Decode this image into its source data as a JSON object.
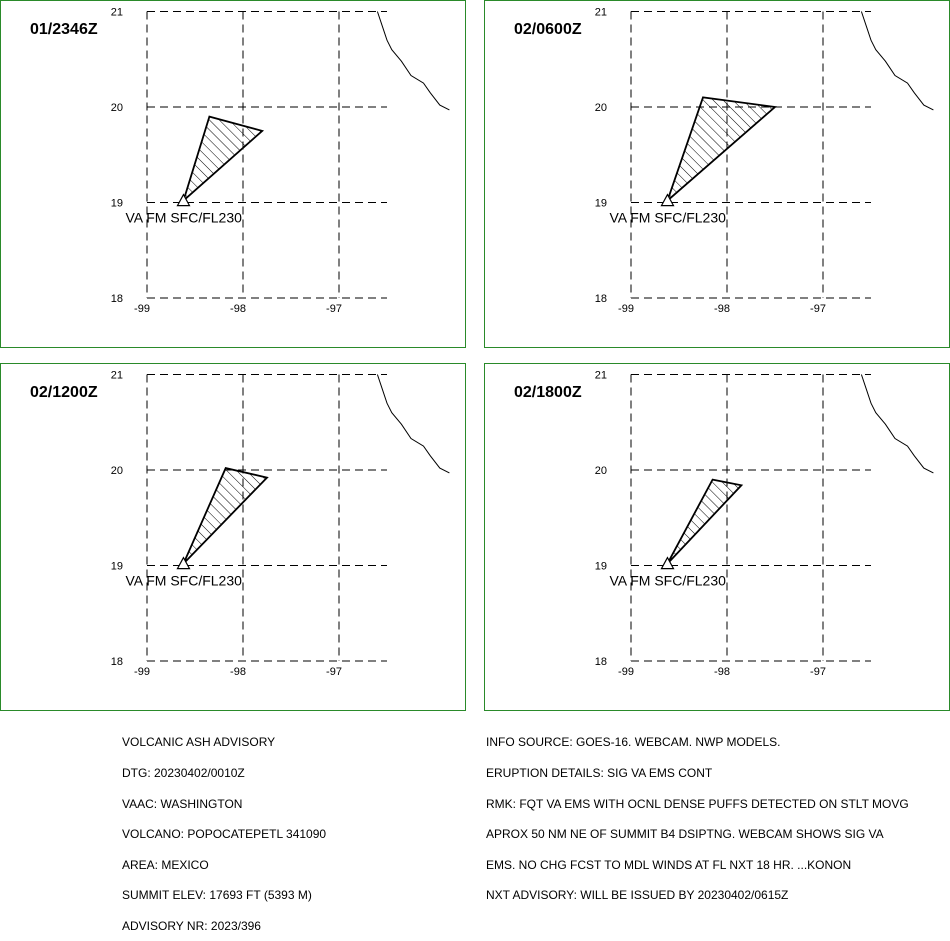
{
  "colors": {
    "frame": "#2a8a2a",
    "ink": "#000000"
  },
  "axes": {
    "x_ticks": [
      "-99",
      "-98",
      "-97"
    ],
    "y_ticks": [
      "21",
      "20",
      "19",
      "18"
    ]
  },
  "panels": [
    {
      "time": "01/2346Z",
      "label": "VA FM SFC/FL230",
      "polygon": [
        [
          -98.62,
          19.02
        ],
        [
          -98.35,
          19.9
        ],
        [
          -97.8,
          19.75
        ]
      ]
    },
    {
      "time": "02/0600Z",
      "label": "VA FM SFC/FL230",
      "polygon": [
        [
          -98.62,
          19.02
        ],
        [
          -98.25,
          20.1
        ],
        [
          -97.5,
          20.0
        ]
      ]
    },
    {
      "time": "02/1200Z",
      "label": "VA FM SFC/FL230",
      "polygon": [
        [
          -98.62,
          19.02
        ],
        [
          -98.18,
          20.02
        ],
        [
          -97.75,
          19.92
        ]
      ]
    },
    {
      "time": "02/1800Z",
      "label": "VA FM SFC/FL230",
      "polygon": [
        [
          -98.62,
          19.02
        ],
        [
          -98.15,
          19.9
        ],
        [
          -97.85,
          19.84
        ]
      ]
    }
  ],
  "coastline": [
    [
      -96.6,
      21.0
    ],
    [
      -96.55,
      20.85
    ],
    [
      -96.5,
      20.7
    ],
    [
      -96.45,
      20.6
    ],
    [
      -96.35,
      20.48
    ],
    [
      -96.25,
      20.33
    ],
    [
      -96.12,
      20.25
    ],
    [
      -96.05,
      20.15
    ],
    [
      -95.95,
      20.02
    ],
    [
      -95.85,
      19.97
    ]
  ],
  "advisory_left": [
    "VOLCANIC ASH ADVISORY",
    "DTG: 20230402/0010Z",
    "VAAC: WASHINGTON",
    "VOLCANO: POPOCATEPETL 341090",
    "AREA: MEXICO",
    "SUMMIT ELEV: 17693 FT (5393 M)",
    "ADVISORY NR: 2023/396"
  ],
  "advisory_right": [
    "INFO SOURCE: GOES-16. WEBCAM. NWP MODELS.",
    "ERUPTION DETAILS: SIG VA EMS CONT",
    "RMK: FQT VA EMS WITH OCNL DENSE PUFFS DETECTED ON STLT MOVG",
    "APROX 50 NM NE OF SUMMIT B4 DSIPTNG. WEBCAM SHOWS SIG VA",
    "EMS. NO CHG FCST TO MDL WINDS AT FL NXT 18 HR. ...KONON",
    "NXT ADVISORY: WILL BE ISSUED BY 20230402/0615Z"
  ]
}
